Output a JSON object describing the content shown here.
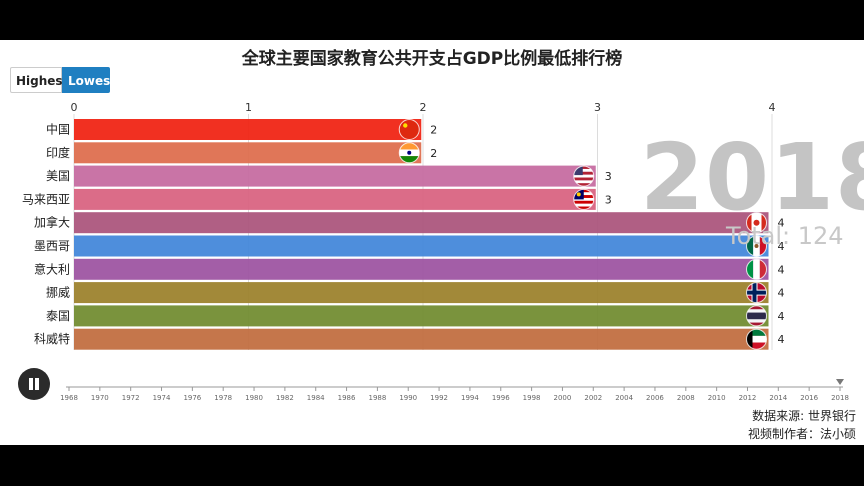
{
  "title": "全球主要国家教育公共开支占GDP比例最低排行榜",
  "controls": {
    "highest_label": "Highest",
    "lowest_label": "Lowest"
  },
  "overlay": {
    "year": "2018",
    "total": "Total: 124"
  },
  "footer": {
    "source": "数据来源: 世界银行",
    "author": "视频制作者：法小硕"
  },
  "colors": {
    "accent": "#1f7fc1"
  },
  "chart_data": {
    "type": "bar",
    "orientation": "horizontal",
    "title": "全球主要国家教育公共开支占GDP比例最低排行榜",
    "xlim": [
      0,
      4
    ],
    "x_ticks": [
      "0",
      "1",
      "2",
      "3",
      "4"
    ],
    "grid": true,
    "categories": [
      "中国",
      "印度",
      "美国",
      "马来西亚",
      "加拿大",
      "墨西哥",
      "意大利",
      "挪威",
      "泰国",
      "科威特"
    ],
    "values": [
      2,
      2,
      3,
      3,
      4,
      4,
      4,
      4,
      4,
      4
    ],
    "value_labels": [
      "2",
      "2",
      "3",
      "3",
      "4",
      "4",
      "4",
      "4",
      "4",
      "4"
    ],
    "bar_values": [
      1.99,
      1.99,
      2.99,
      2.99,
      3.98,
      3.98,
      3.98,
      3.98,
      3.98,
      3.98
    ],
    "bar_colors": [
      "#f01e0e",
      "#dd6a4a",
      "#c4689e",
      "#d8607e",
      "#a9517a",
      "#3f84d9",
      "#9b50a0",
      "#9a7f28",
      "#6f8a2c",
      "#c06a3c"
    ],
    "flag_icons": [
      "china-flag-icon",
      "india-flag-icon",
      "usa-flag-icon",
      "malaysia-flag-icon",
      "canada-flag-icon",
      "mexico-flag-icon",
      "italy-flag-icon",
      "norway-flag-icon",
      "thailand-flag-icon",
      "kuwait-flag-icon"
    ],
    "timeline": {
      "years": [
        "1968",
        "1970",
        "1972",
        "1974",
        "1976",
        "1978",
        "1980",
        "1982",
        "1984",
        "1986",
        "1988",
        "1990",
        "1992",
        "1994",
        "1996",
        "1998",
        "2000",
        "2002",
        "2004",
        "2006",
        "2008",
        "2010",
        "2012",
        "2014",
        "2016",
        "2018"
      ],
      "current": "2018"
    }
  }
}
